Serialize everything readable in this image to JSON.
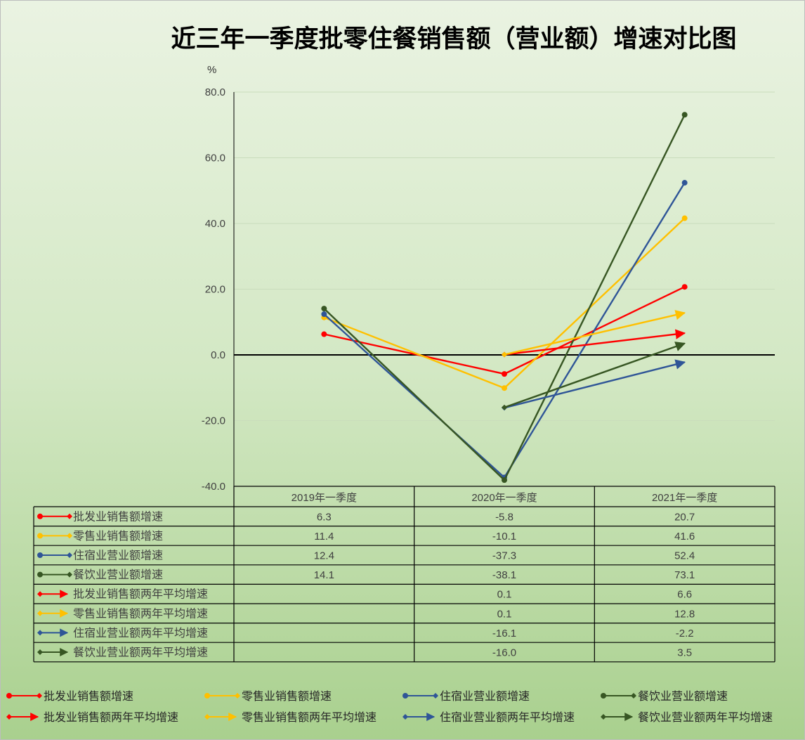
{
  "chart_data": {
    "type": "line",
    "title": "近三年一季度批零住餐销售额（营业额）增速对比图",
    "ylabel": "%",
    "ylim": [
      -40,
      80
    ],
    "yticks": [
      "80.0",
      "60.0",
      "40.0",
      "20.0",
      "0.0",
      "-20.0",
      "-40.0"
    ],
    "categories": [
      "2019年一季度",
      "2020年一季度",
      "2021年一季度"
    ],
    "grid": true,
    "legend": "bottom",
    "series": [
      {
        "name": "批发业销售额增速",
        "values": [
          6.3,
          -5.8,
          20.7
        ],
        "labels": [
          "6.3",
          "-5.8",
          "20.7"
        ],
        "color": "#ff0000",
        "marker": "circle"
      },
      {
        "name": "零售业销售额增速",
        "values": [
          11.4,
          -10.1,
          41.6
        ],
        "labels": [
          "11.4",
          "-10.1",
          "41.6"
        ],
        "color": "#ffc000",
        "marker": "circle"
      },
      {
        "name": "住宿业营业额增速",
        "values": [
          12.4,
          -37.3,
          52.4
        ],
        "labels": [
          "12.4",
          "-37.3",
          "52.4"
        ],
        "color": "#2f5597",
        "marker": "circle"
      },
      {
        "name": "餐饮业营业额增速",
        "values": [
          14.1,
          -38.1,
          73.1
        ],
        "labels": [
          "14.1",
          "-38.1",
          "73.1"
        ],
        "color": "#375623",
        "marker": "circle"
      },
      {
        "name": "批发业销售额两年平均增速",
        "values": [
          null,
          0.1,
          6.6
        ],
        "labels": [
          "",
          "0.1",
          "6.6"
        ],
        "color": "#ff0000",
        "marker": "arrow"
      },
      {
        "name": "零售业销售额两年平均增速",
        "values": [
          null,
          0.1,
          12.8
        ],
        "labels": [
          "",
          "0.1",
          "12.8"
        ],
        "color": "#ffc000",
        "marker": "arrow"
      },
      {
        "name": "住宿业营业额两年平均增速",
        "values": [
          null,
          -16.1,
          -2.2
        ],
        "labels": [
          "",
          "-16.1",
          "-2.2"
        ],
        "color": "#2f5597",
        "marker": "arrow"
      },
      {
        "name": "餐饮业营业额两年平均增速",
        "values": [
          null,
          -16.0,
          3.5
        ],
        "labels": [
          "",
          "-16.0",
          "3.5"
        ],
        "color": "#375623",
        "marker": "arrow"
      }
    ]
  }
}
